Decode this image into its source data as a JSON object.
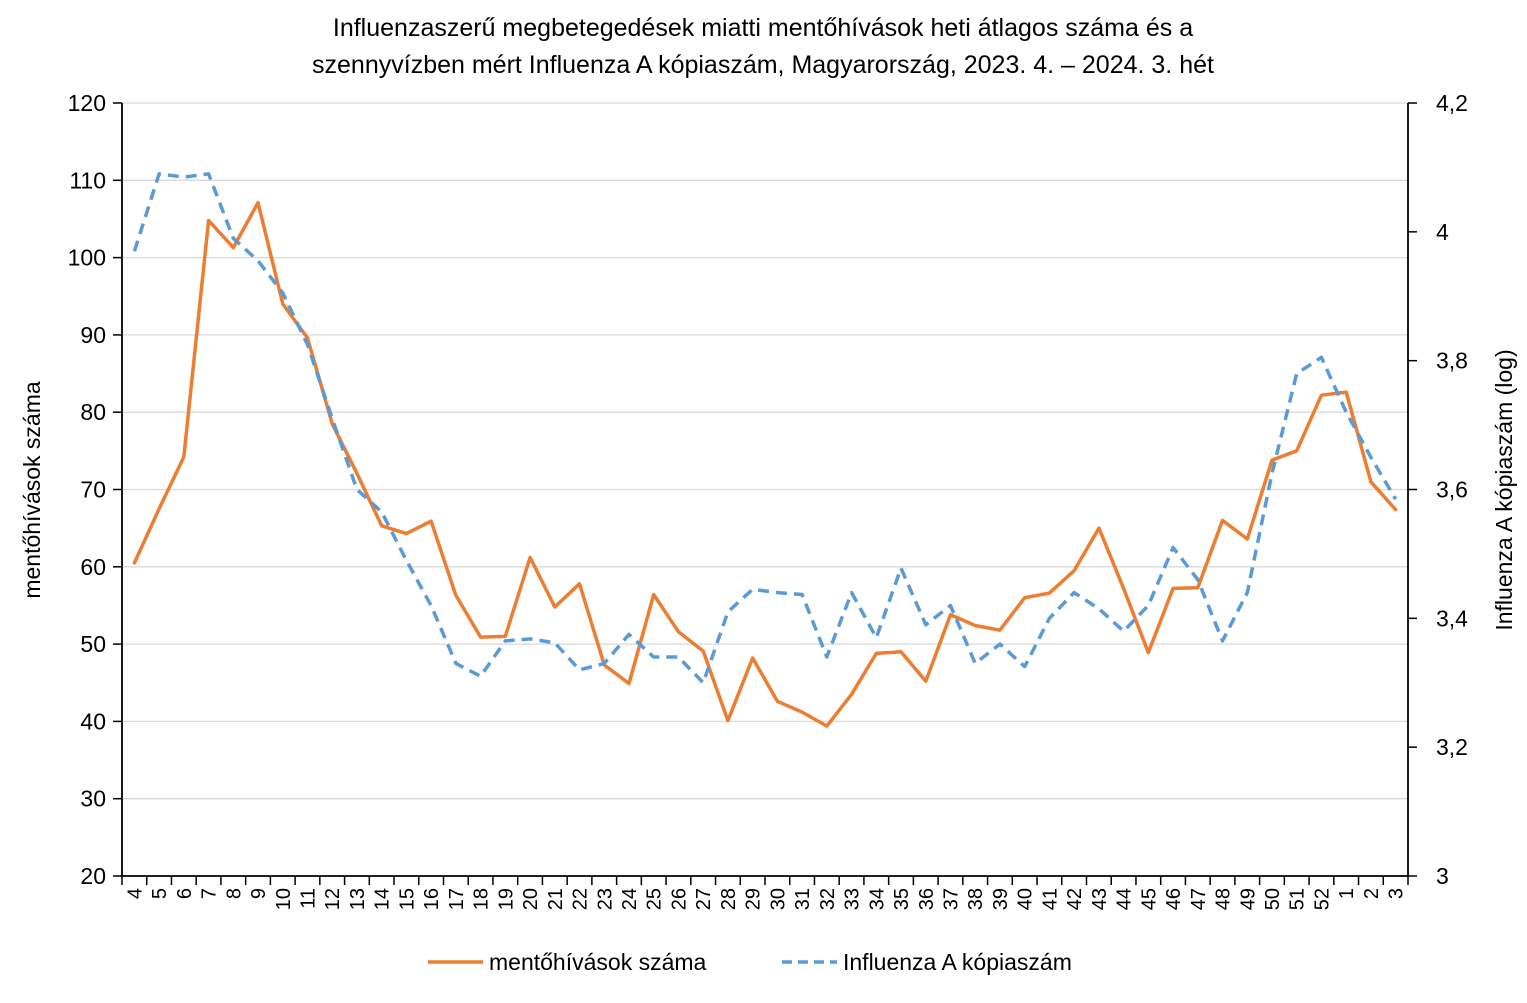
{
  "chart_data": {
    "type": "line",
    "title_line1": "Influenzaszerű megbetegedések miatti mentőhívások heti átlagos száma és a",
    "title_line2": "szennyvízben mért Influenza A kópiaszám, Magyarország, 2023. 4. – 2024. 3. hét",
    "ylabel_left": "mentőhívások száma",
    "ylabel_right": "Influenza A kópiaszám (log)",
    "ylim_left": [
      20,
      120
    ],
    "yticks_left": [
      "20",
      "30",
      "40",
      "50",
      "60",
      "70",
      "80",
      "90",
      "100",
      "110",
      "120"
    ],
    "ylim_right": [
      3.0,
      4.2
    ],
    "yticks_right": [
      "3",
      "3,2",
      "3,4",
      "3,6",
      "3,8",
      "4",
      "4,2"
    ],
    "grid": true,
    "legend_position": "bottom",
    "categories": [
      "4",
      "5",
      "6",
      "7",
      "8",
      "9",
      "10",
      "11",
      "12",
      "13",
      "14",
      "15",
      "16",
      "17",
      "18",
      "19",
      "20",
      "21",
      "22",
      "23",
      "24",
      "25",
      "26",
      "27",
      "28",
      "29",
      "30",
      "31",
      "32",
      "33",
      "34",
      "35",
      "36",
      "37",
      "38",
      "39",
      "40",
      "41",
      "42",
      "43",
      "44",
      "45",
      "46",
      "47",
      "48",
      "49",
      "50",
      "51",
      "52",
      "1",
      "2",
      "3"
    ],
    "series": [
      {
        "name": "mentőhívások száma",
        "axis": "left",
        "color": "#ED7D31",
        "dash": "solid",
        "values": [
          60.5,
          67.5,
          74.2,
          104.8,
          101.3,
          107.1,
          94.0,
          89.6,
          78.5,
          72.1,
          65.3,
          64.3,
          65.9,
          56.3,
          50.9,
          51.0,
          61.2,
          54.8,
          57.8,
          47.3,
          44.9,
          56.4,
          51.6,
          49.1,
          40.1,
          48.2,
          42.6,
          41.2,
          39.4,
          43.5,
          48.8,
          49.0,
          45.2,
          53.8,
          52.4,
          51.8,
          56.0,
          56.6,
          59.5,
          65.0,
          57.2,
          48.9,
          57.2,
          57.3,
          66.0,
          63.6,
          73.8,
          75.0,
          82.2,
          82.6,
          71.0,
          67.4
        ]
      },
      {
        "name": "Influenza A kópiaszám",
        "axis": "right",
        "color": "#5B9BD5",
        "dash": "dashed",
        "values": [
          3.97,
          4.09,
          4.085,
          4.09,
          3.99,
          3.955,
          3.905,
          3.825,
          3.71,
          3.6,
          3.565,
          3.49,
          3.42,
          3.33,
          3.31,
          3.365,
          3.368,
          3.362,
          3.32,
          3.33,
          3.375,
          3.34,
          3.34,
          3.3,
          3.41,
          3.445,
          3.44,
          3.437,
          3.34,
          3.44,
          3.37,
          3.478,
          3.39,
          3.42,
          3.33,
          3.36,
          3.325,
          3.4,
          3.44,
          3.415,
          3.38,
          3.42,
          3.51,
          3.46,
          3.365,
          3.44,
          3.625,
          3.78,
          3.805,
          3.72,
          3.65,
          3.585
        ]
      }
    ]
  }
}
